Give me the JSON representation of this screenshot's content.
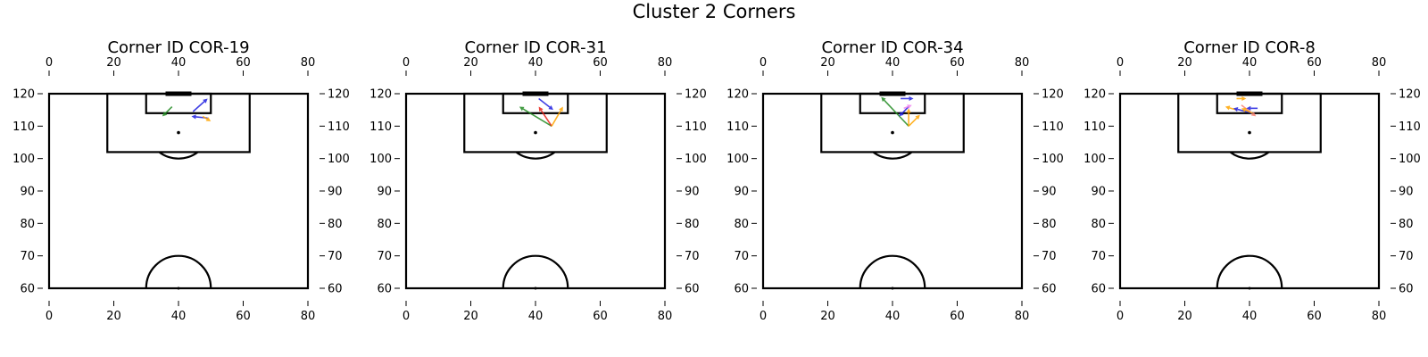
{
  "chart_data": {
    "type": "scatter",
    "suptitle": "Cluster 2 Corners",
    "x_axis": {
      "range": [
        0,
        80
      ],
      "ticks": [
        0,
        20,
        40,
        60,
        80
      ],
      "positions": [
        "top",
        "bottom"
      ]
    },
    "y_axis": {
      "range": [
        60,
        120
      ],
      "ticks": [
        60,
        70,
        80,
        90,
        100,
        110,
        120
      ],
      "positions": [
        "left",
        "right"
      ]
    },
    "grid": false,
    "legend": "none",
    "colors": {
      "line": "#000000",
      "blue": "#1f1fe0",
      "orange": "#ffa500",
      "green": "#228b22",
      "red": "#e8241a",
      "violet": "#ee82ee",
      "salmon": "#fa8072"
    },
    "panels": [
      {
        "title": "Corner ID COR-19",
        "arrows": [
          {
            "from": [
              44.5,
              114.5
            ],
            "to": [
              49,
              118.5
            ],
            "color": "blue"
          },
          {
            "from": [
              49,
              112.5
            ],
            "to": [
              44,
              113
            ],
            "color": "blue"
          },
          {
            "from": [
              47.5,
              113
            ],
            "to": [
              50,
              111.5
            ],
            "color": "orange"
          },
          {
            "from": [
              38,
              116
            ],
            "to": [
              35,
              113
            ],
            "color": "green"
          }
        ]
      },
      {
        "title": "Corner ID COR-31",
        "arrows": [
          {
            "from": [
              41,
              118.5
            ],
            "to": [
              45.5,
              115
            ],
            "color": "blue"
          },
          {
            "from": [
              45,
              110
            ],
            "to": [
              35,
              116
            ],
            "color": "green"
          },
          {
            "from": [
              45,
              110
            ],
            "to": [
              41,
              116
            ],
            "color": "red"
          },
          {
            "from": [
              45,
              110
            ],
            "to": [
              48.5,
              116
            ],
            "color": "orange"
          }
        ]
      },
      {
        "title": "Corner ID COR-34",
        "arrows": [
          {
            "from": [
              42.5,
              118.5
            ],
            "to": [
              46.5,
              118.5
            ],
            "color": "blue"
          },
          {
            "from": [
              45,
              110
            ],
            "to": [
              36.5,
              119
            ],
            "color": "green"
          },
          {
            "from": [
              45,
              116
            ],
            "to": [
              42,
              113
            ],
            "color": "blue"
          },
          {
            "from": [
              43.5,
              115.5
            ],
            "to": [
              46,
              116.5
            ],
            "color": "violet"
          },
          {
            "from": [
              45,
              110
            ],
            "to": [
              48.5,
              113.5
            ],
            "color": "orange"
          },
          {
            "from": [
              45,
              110
            ],
            "to": [
              45,
              115.5
            ],
            "color": "orange"
          }
        ]
      },
      {
        "title": "Corner ID COR-8",
        "arrows": [
          {
            "from": [
              36,
              118.5
            ],
            "to": [
              39,
              118.5
            ],
            "color": "orange"
          },
          {
            "from": [
              42.5,
              115.5
            ],
            "to": [
              39,
              115.5
            ],
            "color": "blue"
          },
          {
            "from": [
              36,
              115
            ],
            "to": [
              32.5,
              116
            ],
            "color": "orange"
          },
          {
            "from": [
              37.5,
              116.5
            ],
            "to": [
              42,
              113
            ],
            "color": "salmon"
          },
          {
            "from": [
              41,
              114
            ],
            "to": [
              35,
              115.5
            ],
            "color": "blue"
          },
          {
            "from": [
              41,
              114
            ],
            "to": [
              37.5,
              115.5
            ],
            "color": "orange"
          }
        ]
      }
    ]
  }
}
